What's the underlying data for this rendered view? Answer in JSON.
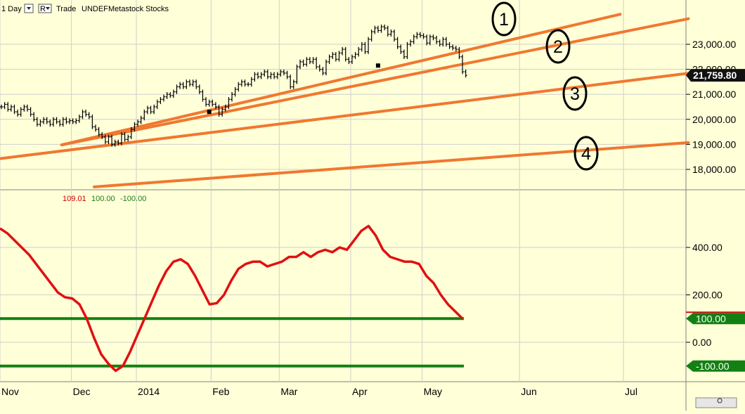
{
  "header": {
    "interval": "1 Day",
    "dropdown_icon": "chevron-down-icon",
    "r_button": "R",
    "trade": "Trade",
    "symbol": "UNDEF",
    "source": "Metastock",
    "category": "Stocks"
  },
  "lower_legend": {
    "v1": "109.01",
    "v2": "100.00",
    "v3": "-100.00",
    "colors": {
      "v1": "#CC0000",
      "v2": "#1E7B1E",
      "v3": "#1E7B1E"
    }
  },
  "colors": {
    "background": "#FFFFD8",
    "price": "#000000",
    "trendline": "#F07830",
    "oscillator": "#E01010",
    "level": "#138013",
    "grid": "#CFCFCF"
  },
  "chart_data": [
    {
      "type": "line",
      "title": "",
      "xlabel": "",
      "ylabel": "",
      "x_tick_labels": [
        "Nov",
        "Dec",
        "2014",
        "Feb",
        "Mar",
        "Apr",
        "May",
        "Jun",
        "Jul"
      ],
      "y_tick_labels": [
        "23,000.00",
        "22,000.00",
        "21,000.00",
        "20,000.00",
        "19,000.00",
        "18,000.00"
      ],
      "ylim": [
        17300,
        24200
      ],
      "last_price_label": "21,759.80",
      "grid": true,
      "series": [
        {
          "values": [
            20500,
            20600,
            20400,
            20500,
            20300,
            20200,
            20400,
            20500,
            20400,
            20200,
            20000,
            19800,
            19900,
            20000,
            19900,
            19800,
            20000,
            19900,
            19800,
            20000,
            19900,
            19950,
            19900,
            19950,
            20100,
            20300,
            20200,
            20100,
            19700,
            19600,
            19400,
            19300,
            19100,
            19300,
            19000,
            19100,
            19050,
            19400,
            19200,
            19300,
            19600,
            19800,
            19900,
            20050,
            20300,
            20450,
            20300,
            20500,
            20700,
            20800,
            20900,
            21000,
            20950,
            21100,
            21300,
            21400,
            21300,
            21500,
            21400,
            21500,
            21300,
            21100,
            20800,
            20600,
            20700,
            20600,
            20500,
            20200,
            20400,
            20500,
            20800,
            21000,
            21200,
            21400,
            21500,
            21400,
            21400,
            21600,
            21800,
            21700,
            21800,
            21900,
            21700,
            21800,
            21700,
            21800,
            21900,
            21850,
            21700,
            21300,
            21500,
            22100,
            22300,
            22200,
            22400,
            22300,
            22400,
            22100,
            22000,
            21850,
            22300,
            22500,
            22600,
            22400,
            22650,
            22800,
            22400,
            22300,
            22500,
            22600,
            22800,
            23000,
            22700,
            23200,
            23500,
            23650,
            23550,
            23700,
            23650,
            23400,
            23500,
            23200,
            22900,
            22700,
            22500,
            23000,
            23100,
            23300,
            23400,
            23350,
            23300,
            23050,
            23300,
            23250,
            23100,
            23000,
            23200,
            23000,
            22900,
            22850,
            22800,
            22500,
            21900,
            21759.8
          ]
        }
      ],
      "trendlines_labels": [
        "1",
        "2",
        "3",
        "4"
      ],
      "trendlines": [
        {
          "label": "1",
          "from": [
            19,
            18980
          ],
          "to": [
            191,
            24200
          ]
        },
        {
          "label": "2",
          "from": [
            19,
            18980
          ],
          "to": [
            212,
            24020
          ]
        },
        {
          "label": "3",
          "from": [
            0,
            18430
          ],
          "to": [
            212,
            21840
          ]
        },
        {
          "label": "4",
          "from": [
            29,
            17300
          ],
          "to": [
            212,
            19070
          ]
        }
      ],
      "pivot_markers": [
        [
          64,
          20300
        ],
        [
          116,
          22150
        ]
      ]
    },
    {
      "type": "line",
      "title": "",
      "xlabel": "",
      "ylabel": "",
      "x_tick_labels": [
        "Nov",
        "Dec",
        "2014",
        "Feb",
        "Mar",
        "Apr",
        "May",
        "Jun",
        "Jul"
      ],
      "y_tick_labels": [
        "400.00",
        "200.00",
        "0.00"
      ],
      "ylim": [
        -170,
        620
      ],
      "reference_levels": [
        "100.00",
        "-100.00"
      ],
      "series": [
        {
          "values": [
            480,
            460,
            430,
            400,
            370,
            330,
            290,
            250,
            210,
            190,
            185,
            160,
            100,
            20,
            -50,
            -90,
            -120,
            -100,
            -40,
            30,
            100,
            170,
            240,
            300,
            340,
            350,
            330,
            280,
            220,
            160,
            165,
            200,
            260,
            310,
            330,
            340,
            340,
            320,
            330,
            340,
            360,
            360,
            380,
            360,
            380,
            390,
            380,
            400,
            390,
            430,
            470,
            490,
            450,
            390,
            360,
            350,
            340,
            340,
            330,
            280,
            250,
            200,
            160,
            130,
            100
          ]
        }
      ]
    }
  ]
}
